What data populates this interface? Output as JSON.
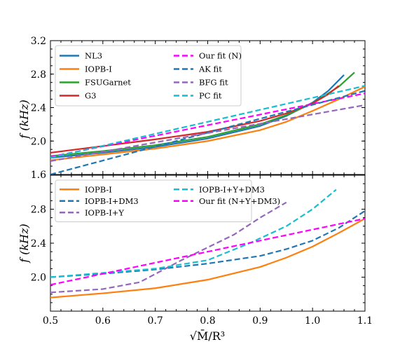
{
  "chart_data": [
    {
      "type": "line",
      "panel": "top",
      "xlabel": "",
      "ylabel": "f (kHz)",
      "xlim": [
        0.5,
        1.1
      ],
      "ylim": [
        1.6,
        3.2
      ],
      "yticks": [
        "1.6",
        "2.0",
        "2.4",
        "2.8",
        "3.2"
      ],
      "legend_position": "top-left",
      "series": [
        {
          "name": "NL3",
          "color": "#1f77b4",
          "style": "solid",
          "x": [
            0.5,
            0.6,
            0.7,
            0.8,
            0.9,
            0.95,
            1.0,
            1.03,
            1.06
          ],
          "y": [
            1.8,
            1.86,
            1.93,
            2.03,
            2.18,
            2.3,
            2.46,
            2.6,
            2.79
          ]
        },
        {
          "name": "IOPB-I",
          "color": "#ff7f0e",
          "style": "solid",
          "x": [
            0.5,
            0.6,
            0.7,
            0.8,
            0.9,
            0.95,
            1.0,
            1.05,
            1.1
          ],
          "y": [
            1.77,
            1.84,
            1.91,
            2.0,
            2.13,
            2.23,
            2.36,
            2.5,
            2.65
          ]
        },
        {
          "name": "FSUGarnet",
          "color": "#2ca02c",
          "style": "solid",
          "x": [
            0.5,
            0.6,
            0.7,
            0.8,
            0.9,
            0.95,
            1.0,
            1.05,
            1.08
          ],
          "y": [
            1.82,
            1.88,
            1.95,
            2.05,
            2.2,
            2.31,
            2.45,
            2.65,
            2.82
          ]
        },
        {
          "name": "G3",
          "color": "#d62728",
          "style": "solid",
          "x": [
            0.5,
            0.6,
            0.7,
            0.8,
            0.9,
            0.95,
            1.0,
            1.03,
            1.05
          ],
          "y": [
            1.86,
            1.94,
            2.02,
            2.11,
            2.24,
            2.33,
            2.45,
            2.56,
            2.66
          ]
        },
        {
          "name": "Our fit (N)",
          "color": "#ff00ff",
          "style": "dashed",
          "x": [
            0.5,
            1.1
          ],
          "y": [
            1.81,
            2.57
          ]
        },
        {
          "name": "AK fit",
          "color": "#1f77b4",
          "style": "dashed",
          "x": [
            0.5,
            1.1
          ],
          "y": [
            1.6,
            2.6
          ]
        },
        {
          "name": "BFG fit",
          "color": "#9467bd",
          "style": "dashed",
          "x": [
            0.5,
            1.1
          ],
          "y": [
            1.76,
            2.43
          ]
        },
        {
          "name": "PC fit",
          "color": "#17becf",
          "style": "dashed",
          "x": [
            0.5,
            1.1
          ],
          "y": [
            1.8,
            2.66
          ]
        }
      ]
    },
    {
      "type": "line",
      "panel": "bottom",
      "xlabel": "√M̄/R³",
      "ylabel": "f (kHz)",
      "xlim": [
        0.5,
        1.1
      ],
      "ylim": [
        1.6,
        3.2
      ],
      "xticks": [
        "0.5",
        "0.6",
        "0.7",
        "0.8",
        "0.9",
        "1.0",
        "1.1"
      ],
      "yticks": [
        "2.0",
        "2.4",
        "2.8"
      ],
      "legend_position": "top-left",
      "series": [
        {
          "name": "IOPB-I",
          "color": "#ff7f0e",
          "style": "solid",
          "x": [
            0.5,
            0.6,
            0.7,
            0.8,
            0.9,
            0.95,
            1.0,
            1.05,
            1.1
          ],
          "y": [
            1.76,
            1.81,
            1.87,
            1.97,
            2.12,
            2.23,
            2.36,
            2.52,
            2.69
          ]
        },
        {
          "name": "IOPB-I+DM3",
          "color": "#1f77b4",
          "style": "dashed",
          "x": [
            0.5,
            0.6,
            0.7,
            0.8,
            0.9,
            0.95,
            1.0,
            1.05,
            1.1
          ],
          "y": [
            2.0,
            2.04,
            2.09,
            2.16,
            2.25,
            2.33,
            2.43,
            2.58,
            2.78
          ]
        },
        {
          "name": "IOPB-I+Y",
          "color": "#9467bd",
          "style": "dashed",
          "x": [
            0.5,
            0.6,
            0.67,
            0.75,
            0.85,
            0.9,
            0.95
          ],
          "y": [
            1.82,
            1.86,
            1.94,
            2.2,
            2.5,
            2.7,
            2.88
          ]
        },
        {
          "name": "IOPB-I+Y+DM3",
          "color": "#17becf",
          "style": "dashed",
          "x": [
            0.5,
            0.6,
            0.7,
            0.8,
            0.88,
            0.95,
            1.0,
            1.045
          ],
          "y": [
            2.0,
            2.05,
            2.1,
            2.2,
            2.4,
            2.6,
            2.8,
            3.03
          ]
        },
        {
          "name": "Our fit (N+Y+DM3)",
          "color": "#ff00ff",
          "style": "dashed",
          "x": [
            0.5,
            1.1
          ],
          "y": [
            1.91,
            2.69
          ]
        }
      ]
    }
  ]
}
